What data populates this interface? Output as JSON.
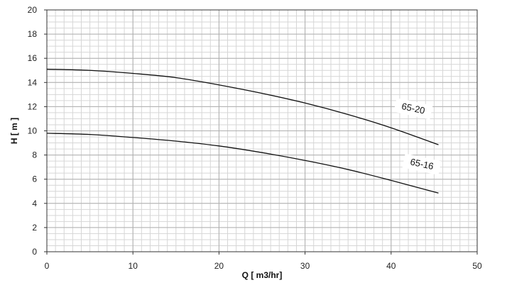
{
  "chart_data": {
    "type": "line",
    "title": "",
    "xlabel": "Q [ m3/hr]",
    "ylabel": "H [ m ]",
    "xlim": [
      0,
      50
    ],
    "ylim": [
      0,
      20
    ],
    "x_ticks": [
      0,
      10,
      20,
      30,
      40,
      50
    ],
    "y_ticks": [
      0,
      2,
      4,
      6,
      8,
      10,
      12,
      14,
      16,
      18,
      20
    ],
    "grid": true,
    "minor_grid": {
      "x_step": 1,
      "y_step": 0.5
    },
    "colors": {
      "line": "#111111",
      "grid_major": "#b0b0b0",
      "grid_minor": "#d6d6d6",
      "axis": "#333333"
    },
    "series": [
      {
        "name": "65-20",
        "points": [
          [
            0,
            15.1
          ],
          [
            5,
            15.0
          ],
          [
            10,
            14.75
          ],
          [
            15,
            14.4
          ],
          [
            20,
            13.8
          ],
          [
            25,
            13.1
          ],
          [
            30,
            12.3
          ],
          [
            35,
            11.35
          ],
          [
            40,
            10.25
          ],
          [
            45.5,
            8.85
          ]
        ]
      },
      {
        "name": "65-16",
        "points": [
          [
            0,
            9.8
          ],
          [
            5,
            9.7
          ],
          [
            10,
            9.45
          ],
          [
            15,
            9.15
          ],
          [
            20,
            8.75
          ],
          [
            25,
            8.2
          ],
          [
            30,
            7.55
          ],
          [
            35,
            6.8
          ],
          [
            40,
            5.9
          ],
          [
            45.5,
            4.85
          ]
        ]
      }
    ]
  }
}
